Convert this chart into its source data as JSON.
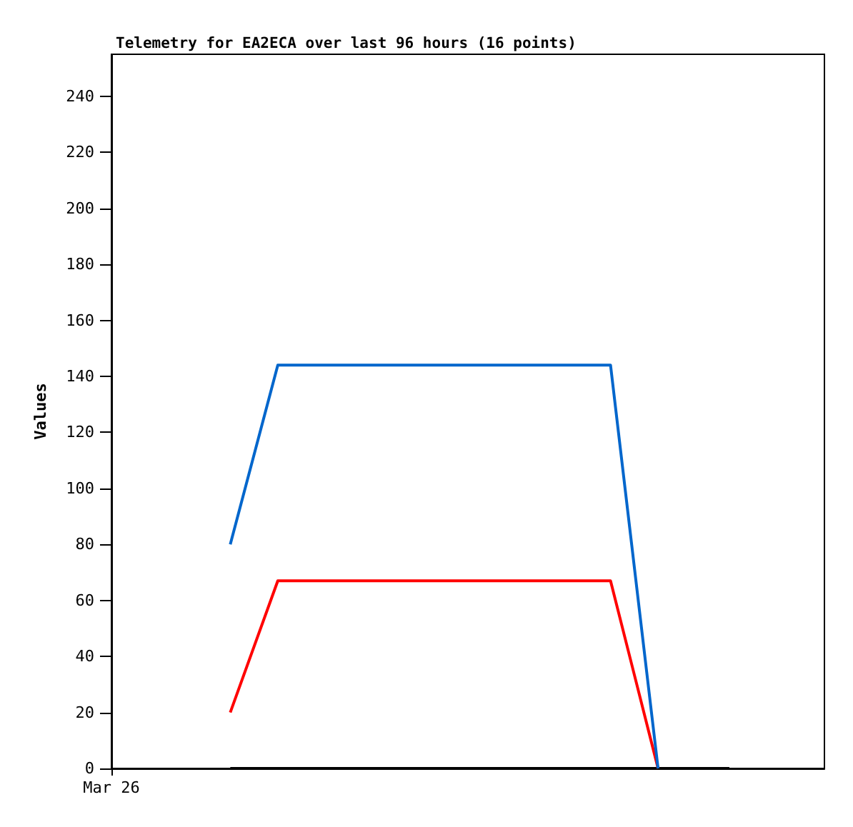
{
  "chart_data": {
    "type": "line",
    "title": "Telemetry for EA2ECA over last 96 hours (16 points)",
    "ylabel": "Values",
    "categories": [
      "Mar 26",
      null,
      null,
      null,
      null,
      null,
      null,
      null,
      null,
      null,
      null,
      null,
      null,
      null,
      null,
      null,
      null,
      null,
      null,
      null,
      null,
      null,
      null,
      null,
      null,
      null,
      null,
      null,
      null,
      null,
      null
    ],
    "series": [
      {
        "color": "#000000",
        "values": [
          null,
          null,
          null,
          null,
          null,
          0,
          0,
          0,
          0,
          0,
          0,
          0,
          0,
          0,
          0,
          0,
          0,
          0,
          0,
          0,
          0,
          0,
          0,
          0,
          0,
          0,
          0,
          null,
          null,
          null,
          null
        ]
      },
      {
        "color": "#ff0000",
        "values": [
          null,
          null,
          null,
          null,
          null,
          20,
          43.5,
          67,
          67,
          67,
          67,
          67,
          67,
          67,
          67,
          67,
          67,
          67,
          67,
          67,
          67,
          67,
          33.5,
          0,
          null,
          null,
          null,
          null,
          null,
          null,
          null
        ]
      },
      {
        "color": "#0066cc",
        "values": [
          null,
          null,
          null,
          null,
          null,
          80,
          112,
          144,
          144,
          144,
          144,
          144,
          144,
          144,
          144,
          144,
          144,
          144,
          144,
          144,
          144,
          144,
          72,
          0,
          null,
          null,
          null,
          null,
          null,
          null,
          null
        ]
      }
    ],
    "ylim": [
      0,
      255
    ],
    "yticks": [
      0,
      20,
      40,
      60,
      80,
      100,
      120,
      140,
      160,
      180,
      200,
      220,
      240
    ],
    "grid": false,
    "marker": "none",
    "line_style": "solid"
  }
}
